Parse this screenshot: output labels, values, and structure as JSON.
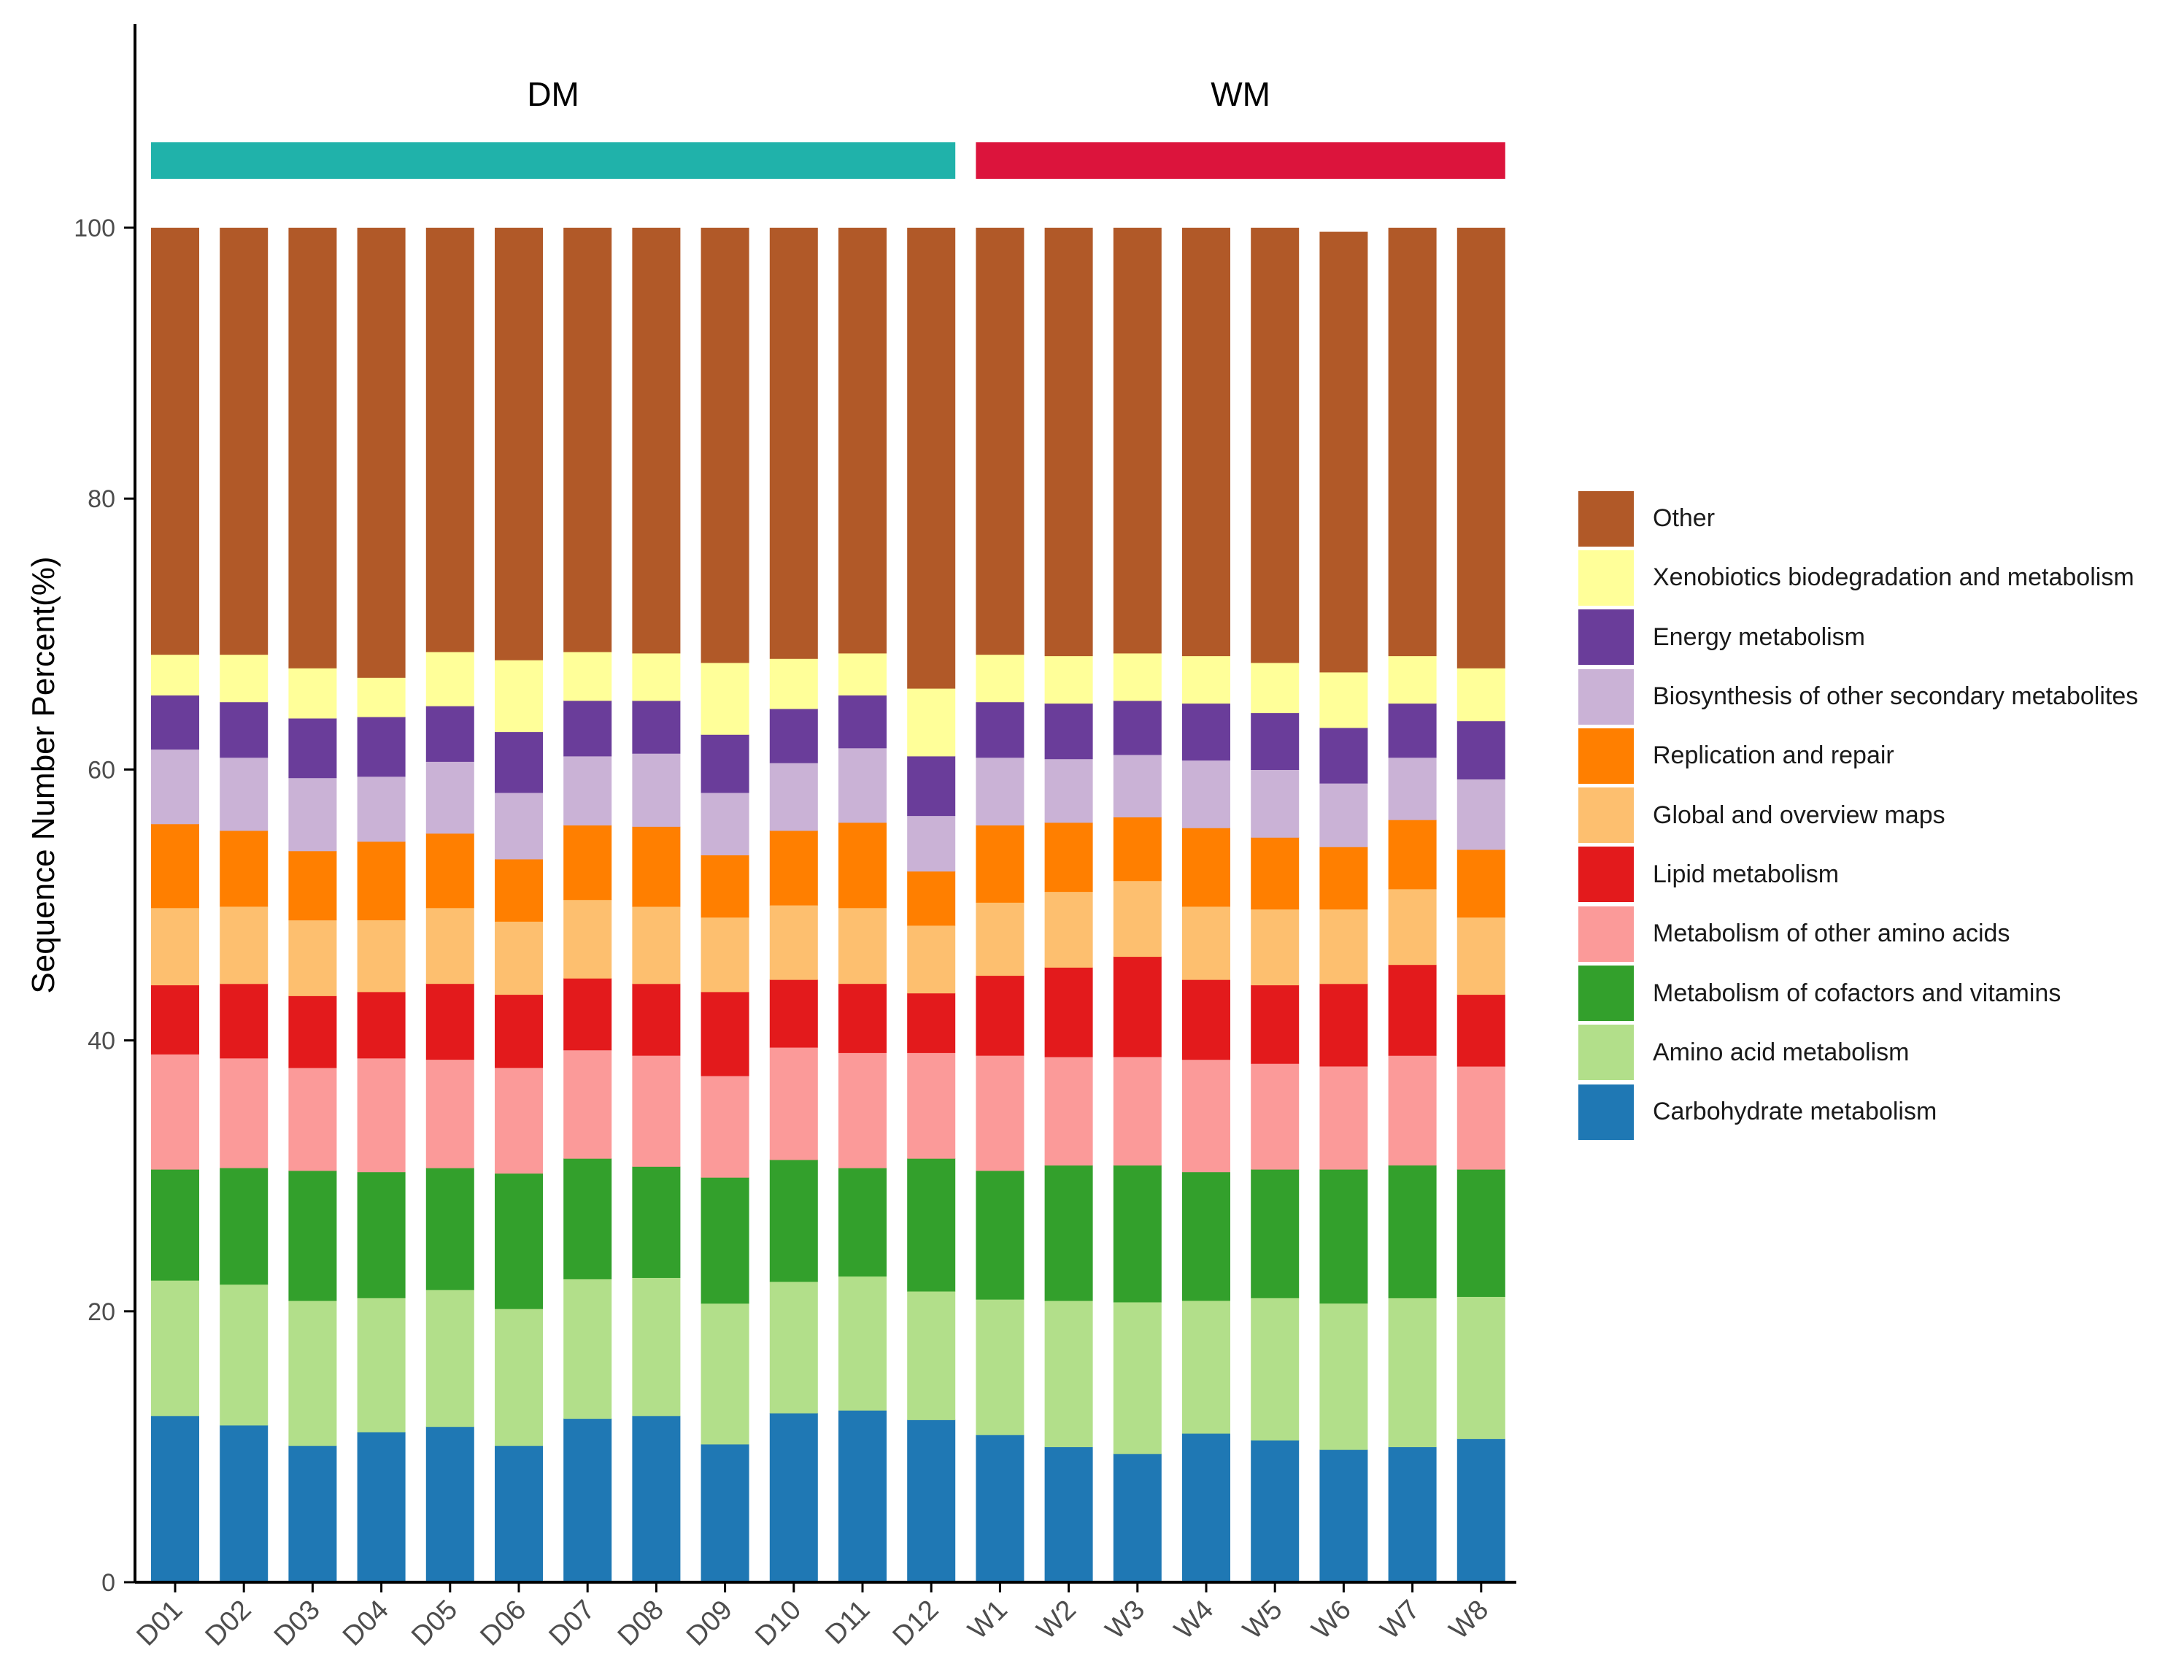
{
  "chart_data": {
    "type": "bar",
    "stacked": true,
    "ylabel": "Sequence Number Percent(%)",
    "xlabel": "",
    "ylim": [
      0,
      100
    ],
    "yticks": [
      0,
      20,
      40,
      60,
      80,
      100
    ],
    "categories": [
      "D01",
      "D02",
      "D03",
      "D04",
      "D05",
      "D06",
      "D07",
      "D08",
      "D09",
      "D10",
      "D11",
      "D12",
      "W1",
      "W2",
      "W3",
      "W4",
      "W5",
      "W6",
      "W7",
      "W8"
    ],
    "groups": [
      {
        "name": "DM",
        "color": "#20B2AA",
        "categories": [
          "D01",
          "D02",
          "D03",
          "D04",
          "D05",
          "D06",
          "D07",
          "D08",
          "D09",
          "D10",
          "D11",
          "D12"
        ]
      },
      {
        "name": "WM",
        "color": "#DC143C",
        "categories": [
          "W1",
          "W2",
          "W3",
          "W4",
          "W5",
          "W6",
          "W7",
          "W8"
        ]
      }
    ],
    "legend_position": "right",
    "grid": false,
    "series": [
      {
        "name": "Carbohydrate metabolism",
        "color": "#1F78B4",
        "values": [
          12.3,
          11.6,
          10.1,
          11.1,
          11.5,
          10.1,
          12.1,
          12.3,
          10.2,
          12.5,
          12.7,
          12.0,
          10.9,
          10.0,
          9.5,
          11.0,
          10.5,
          9.8,
          10.0,
          10.6
        ]
      },
      {
        "name": "Amino acid metabolism",
        "color": "#B2DF8A",
        "values": [
          10.0,
          10.4,
          10.7,
          9.9,
          10.1,
          10.1,
          10.3,
          10.2,
          10.4,
          9.7,
          9.9,
          9.5,
          10.0,
          10.8,
          11.2,
          9.8,
          10.5,
          10.8,
          11.0,
          10.5
        ]
      },
      {
        "name": "Metabolism of cofactors and vitamins",
        "color": "#33A02C",
        "values": [
          8.2,
          8.6,
          9.6,
          9.3,
          9.0,
          10.0,
          8.9,
          8.2,
          9.3,
          9.0,
          8.0,
          9.8,
          9.5,
          10.0,
          10.1,
          9.5,
          9.5,
          9.9,
          9.8,
          9.4
        ]
      },
      {
        "name": "Metabolism of other amino acids",
        "color": "#FB9A99",
        "values": [
          8.5,
          8.1,
          7.6,
          8.4,
          8.0,
          7.8,
          8.0,
          8.2,
          7.5,
          8.3,
          8.5,
          7.8,
          8.5,
          8.0,
          8.0,
          8.3,
          7.8,
          7.6,
          8.1,
          7.6
        ]
      },
      {
        "name": "Lipid metabolism",
        "color": "#E31A1C",
        "values": [
          5.1,
          5.5,
          5.3,
          4.9,
          5.6,
          5.4,
          5.3,
          5.3,
          6.2,
          5.0,
          5.1,
          4.4,
          5.9,
          6.6,
          7.4,
          5.9,
          5.8,
          6.1,
          6.7,
          5.3
        ]
      },
      {
        "name": "Global and overview maps",
        "color": "#FDBF6F",
        "values": [
          5.7,
          5.7,
          5.6,
          5.3,
          5.6,
          5.4,
          5.8,
          5.7,
          5.5,
          5.5,
          5.6,
          5.0,
          5.4,
          5.6,
          5.6,
          5.4,
          5.6,
          5.5,
          5.6,
          5.7
        ]
      },
      {
        "name": "Replication and repair",
        "color": "#FF7F00",
        "values": [
          6.2,
          5.6,
          5.1,
          5.8,
          5.5,
          4.6,
          5.5,
          5.9,
          4.6,
          5.5,
          6.3,
          4.0,
          5.7,
          5.1,
          4.7,
          5.8,
          5.3,
          4.6,
          5.1,
          5.0
        ]
      },
      {
        "name": "Biosynthesis of other secondary metabolites",
        "color": "#CAB2D6",
        "values": [
          5.5,
          5.4,
          5.4,
          4.8,
          5.3,
          4.9,
          5.1,
          5.4,
          4.6,
          5.0,
          5.5,
          4.1,
          5.0,
          4.7,
          4.6,
          5.0,
          5.0,
          4.7,
          4.6,
          5.2
        ]
      },
      {
        "name": "Energy metabolism",
        "color": "#6A3D9A",
        "values": [
          4.0,
          4.1,
          4.4,
          4.4,
          4.1,
          4.5,
          4.1,
          3.9,
          4.3,
          4.0,
          3.9,
          4.4,
          4.1,
          4.1,
          4.0,
          4.2,
          4.2,
          4.1,
          4.0,
          4.3
        ]
      },
      {
        "name": "Xenobiotics biodegradation and metabolism",
        "color": "#FFFF99",
        "values": [
          3.0,
          3.5,
          3.7,
          2.9,
          4.0,
          5.3,
          3.6,
          3.5,
          5.3,
          3.7,
          3.1,
          5.0,
          3.5,
          3.5,
          3.5,
          3.5,
          3.7,
          4.1,
          3.5,
          3.9
        ]
      },
      {
        "name": "Other",
        "color": "#B15928",
        "values": [
          31.5,
          31.5,
          32.5,
          33.2,
          31.3,
          31.9,
          31.3,
          31.4,
          32.1,
          31.8,
          31.4,
          34.0,
          31.5,
          31.6,
          31.4,
          31.6,
          32.1,
          32.5,
          31.6,
          32.5
        ]
      }
    ]
  },
  "legend": [
    {
      "label": "Other",
      "color": "#B15928"
    },
    {
      "label": "Xenobiotics biodegradation and metabolism",
      "color": "#FFFF99"
    },
    {
      "label": "Energy metabolism",
      "color": "#6A3D9A"
    },
    {
      "label": "Biosynthesis of other secondary metabolites",
      "color": "#CAB2D6"
    },
    {
      "label": "Replication and repair",
      "color": "#FF7F00"
    },
    {
      "label": "Global and overview maps",
      "color": "#FDBF6F"
    },
    {
      "label": "Lipid metabolism",
      "color": "#E31A1C"
    },
    {
      "label": "Metabolism of other amino acids",
      "color": "#FB9A99"
    },
    {
      "label": "Metabolism of cofactors and vitamins",
      "color": "#33A02C"
    },
    {
      "label": "Amino acid metabolism",
      "color": "#B2DF8A"
    },
    {
      "label": "Carbohydrate metabolism",
      "color": "#1F78B4"
    }
  ]
}
